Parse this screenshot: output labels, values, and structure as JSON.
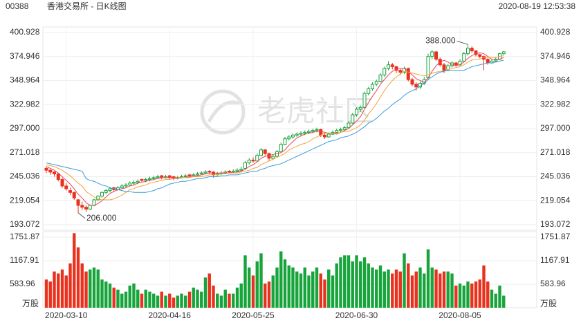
{
  "header": {
    "code": "00388",
    "title": "香港交易所 - 日K线图",
    "timestamp": "2020-08-19 12:53:38"
  },
  "watermark": "老虎社区",
  "chart_data": {
    "type": "candlestick",
    "categories": [
      null,
      null,
      null,
      null,
      null,
      "2020-03-10",
      null,
      null,
      null,
      null,
      null,
      null,
      null,
      null,
      null,
      null,
      null,
      null,
      null,
      null,
      null,
      null,
      null,
      null,
      null,
      null,
      null,
      null,
      null,
      null,
      null,
      "2020-04-16",
      null,
      null,
      null,
      null,
      null,
      null,
      null,
      null,
      null,
      null,
      null,
      null,
      null,
      null,
      null,
      null,
      null,
      null,
      null,
      null,
      "2020-05-25",
      null,
      null,
      null,
      null,
      null,
      null,
      null,
      null,
      null,
      null,
      null,
      null,
      null,
      null,
      null,
      null,
      null,
      null,
      null,
      null,
      null,
      null,
      null,
      null,
      null,
      "2020-06-30",
      null,
      null,
      null,
      null,
      null,
      null,
      null,
      null,
      null,
      null,
      null,
      null,
      null,
      null,
      null,
      null,
      null,
      null,
      null,
      null,
      null,
      null,
      null,
      null,
      null,
      "2020-08-05",
      null,
      null,
      null,
      null,
      null,
      null,
      null,
      null,
      null,
      null,
      null
    ],
    "candles": [
      [
        254,
        256,
        249,
        252
      ],
      [
        252,
        253,
        247,
        250
      ],
      [
        250,
        251,
        245,
        248
      ],
      [
        248,
        249,
        240,
        242
      ],
      [
        242,
        244,
        233,
        235
      ],
      [
        235,
        238,
        230,
        232
      ],
      [
        230,
        233,
        225,
        228
      ],
      [
        228,
        229,
        220,
        222
      ],
      [
        220,
        221,
        206,
        214
      ],
      [
        214,
        218,
        209,
        212
      ],
      [
        212,
        214,
        207,
        210
      ],
      [
        210,
        215,
        209,
        214
      ],
      [
        214,
        221,
        213,
        220
      ],
      [
        220,
        225,
        219,
        224
      ],
      [
        224,
        229,
        222,
        228
      ],
      [
        228,
        232,
        226,
        230
      ],
      [
        230,
        234,
        228,
        232
      ],
      [
        233,
        234,
        229,
        231
      ],
      [
        231,
        235,
        230,
        233
      ],
      [
        233,
        237,
        232,
        235
      ],
      [
        235,
        238,
        233,
        236
      ],
      [
        236,
        240,
        235,
        238
      ],
      [
        238,
        241,
        236,
        239
      ],
      [
        239,
        242,
        237,
        240
      ],
      [
        242,
        243,
        239,
        241
      ],
      [
        241,
        244,
        239,
        242
      ],
      [
        242,
        245,
        240,
        243
      ],
      [
        243,
        246,
        241,
        244
      ],
      [
        244,
        247,
        243,
        245
      ],
      [
        246,
        247,
        242,
        244
      ],
      [
        244,
        247,
        243,
        245
      ],
      [
        246,
        247,
        242,
        244
      ],
      [
        245,
        246,
        241,
        243
      ],
      [
        243,
        246,
        242,
        244
      ],
      [
        244,
        247,
        243,
        245
      ],
      [
        245,
        248,
        244,
        246
      ],
      [
        247,
        248,
        244,
        246
      ],
      [
        246,
        249,
        245,
        247
      ],
      [
        247,
        250,
        246,
        248
      ],
      [
        248,
        251,
        247,
        249
      ],
      [
        249,
        252,
        248,
        250
      ],
      [
        251,
        252,
        248,
        250
      ],
      [
        250,
        251,
        244,
        247
      ],
      [
        247,
        250,
        246,
        248
      ],
      [
        248,
        251,
        247,
        249
      ],
      [
        249,
        252,
        248,
        250
      ],
      [
        251,
        252,
        249,
        250
      ],
      [
        250,
        253,
        249,
        251
      ],
      [
        251,
        254,
        250,
        252
      ],
      [
        252,
        256,
        251,
        253
      ],
      [
        254,
        262,
        253,
        260
      ],
      [
        260,
        265,
        258,
        263
      ],
      [
        263,
        266,
        260,
        262
      ],
      [
        262,
        270,
        261,
        268
      ],
      [
        268,
        276,
        267,
        274
      ],
      [
        274,
        275,
        268,
        270
      ],
      [
        270,
        271,
        262,
        265
      ],
      [
        265,
        269,
        263,
        267
      ],
      [
        267,
        274,
        266,
        272
      ],
      [
        272,
        282,
        271,
        280
      ],
      [
        280,
        288,
        279,
        286
      ],
      [
        286,
        290,
        284,
        288
      ],
      [
        288,
        292,
        286,
        290
      ],
      [
        290,
        293,
        288,
        291
      ],
      [
        291,
        294,
        289,
        292
      ],
      [
        292,
        295,
        290,
        293
      ],
      [
        293,
        296,
        291,
        294
      ],
      [
        294,
        297,
        292,
        295
      ],
      [
        295,
        298,
        293,
        296
      ],
      [
        296,
        297,
        288,
        290
      ],
      [
        290,
        292,
        286,
        288
      ],
      [
        288,
        293,
        287,
        291
      ],
      [
        291,
        295,
        290,
        293
      ],
      [
        293,
        297,
        292,
        295
      ],
      [
        295,
        298,
        293,
        296
      ],
      [
        296,
        300,
        295,
        298
      ],
      [
        298,
        305,
        297,
        303
      ],
      [
        303,
        314,
        302,
        312
      ],
      [
        312,
        320,
        310,
        318
      ],
      [
        318,
        322,
        315,
        320
      ],
      [
        320,
        337,
        319,
        335
      ],
      [
        335,
        342,
        333,
        340
      ],
      [
        340,
        347,
        338,
        345
      ],
      [
        345,
        350,
        343,
        348
      ],
      [
        348,
        357,
        347,
        355
      ],
      [
        355,
        364,
        353,
        362
      ],
      [
        362,
        370,
        360,
        366
      ],
      [
        366,
        368,
        361,
        364
      ],
      [
        364,
        365,
        357,
        360
      ],
      [
        360,
        362,
        355,
        358
      ],
      [
        358,
        364,
        356,
        362
      ],
      [
        362,
        363,
        348,
        350
      ],
      [
        350,
        352,
        343,
        345
      ],
      [
        345,
        347,
        338,
        342
      ],
      [
        342,
        348,
        340,
        346
      ],
      [
        346,
        353,
        344,
        350
      ],
      [
        352,
        378,
        350,
        375
      ],
      [
        375,
        382,
        372,
        380
      ],
      [
        380,
        381,
        370,
        372
      ],
      [
        372,
        374,
        364,
        366
      ],
      [
        366,
        368,
        357,
        360
      ],
      [
        360,
        367,
        359,
        365
      ],
      [
        365,
        370,
        363,
        368
      ],
      [
        368,
        369,
        364,
        366
      ],
      [
        366,
        372,
        365,
        370
      ],
      [
        370,
        380,
        369,
        378
      ],
      [
        378,
        388,
        376,
        384
      ],
      [
        384,
        386,
        379,
        381
      ],
      [
        381,
        382,
        375,
        377
      ],
      [
        377,
        378,
        373,
        375
      ],
      [
        375,
        376,
        360,
        372
      ],
      [
        372,
        373,
        366,
        368
      ],
      [
        368,
        372,
        367,
        370
      ],
      [
        370,
        374,
        369,
        372
      ],
      [
        372,
        379,
        371,
        378
      ],
      [
        378,
        381,
        377,
        380
      ]
    ],
    "up_color": "#17a43b",
    "down_color": "#e8321e",
    "series": [
      {
        "color": "#e8455a",
        "values": [
          256,
          254,
          252,
          249,
          245,
          241,
          237,
          232,
          226,
          222,
          217,
          214,
          214,
          216,
          219,
          223,
          227,
          229,
          231,
          232,
          233,
          235,
          236,
          238,
          239,
          240,
          241,
          242,
          243,
          244,
          244,
          244,
          244,
          244,
          244,
          244,
          245,
          246,
          246,
          247,
          248,
          249,
          249,
          249,
          249,
          249,
          249,
          250,
          250,
          251,
          253,
          256,
          258,
          261,
          265,
          267,
          268,
          269,
          270,
          271,
          274,
          279,
          283,
          287,
          289,
          291,
          292,
          293,
          294,
          294,
          293,
          292,
          292,
          291,
          293,
          295,
          297,
          301,
          305,
          310,
          318,
          325,
          332,
          338,
          345,
          350,
          355,
          359,
          361,
          362,
          362,
          359,
          355,
          351,
          349,
          347,
          352,
          359,
          365,
          369,
          371,
          369,
          366,
          365,
          366,
          369,
          373,
          376,
          378,
          379,
          378,
          375,
          372,
          371,
          372,
          374
        ]
      },
      {
        "color": "#f5a23a",
        "values": [
          258,
          257,
          256,
          254,
          252,
          249,
          246,
          242,
          238,
          235,
          229,
          226,
          223,
          221,
          220,
          220,
          220,
          221,
          223,
          225,
          228,
          231,
          232,
          234,
          235,
          236,
          238,
          239,
          240,
          241,
          242,
          242,
          243,
          243,
          244,
          244,
          244,
          245,
          245,
          245,
          246,
          247,
          247,
          247,
          248,
          248,
          249,
          249,
          249,
          250,
          251,
          252,
          254,
          255,
          258,
          260,
          262,
          264,
          266,
          268,
          270,
          274,
          276,
          278,
          280,
          281,
          283,
          286,
          288,
          290,
          292,
          292,
          292,
          292,
          293,
          294,
          294,
          296,
          298,
          301,
          306,
          313,
          318,
          324,
          331,
          338,
          344,
          349,
          353,
          356,
          359,
          358,
          357,
          356,
          355,
          354,
          355,
          357,
          358,
          359,
          359,
          361,
          362,
          363,
          364,
          366,
          369,
          371,
          372,
          372,
          374,
          374,
          374,
          374,
          375,
          376
        ]
      },
      {
        "color": "#3a9ad9",
        "values": [
          260,
          259,
          258,
          257,
          256,
          255,
          254,
          253,
          252,
          251,
          243,
          241,
          240,
          238,
          236,
          235,
          233,
          232,
          231,
          230,
          229,
          229,
          228,
          228,
          228,
          228,
          229,
          230,
          232,
          233,
          235,
          237,
          238,
          239,
          240,
          240,
          241,
          242,
          243,
          243,
          244,
          245,
          245,
          245,
          246,
          246,
          247,
          247,
          247,
          248,
          249,
          250,
          251,
          251,
          253,
          254,
          256,
          257,
          258,
          259,
          261,
          263,
          265,
          267,
          269,
          271,
          273,
          275,
          277,
          279,
          281,
          283,
          284,
          285,
          287,
          288,
          289,
          291,
          293,
          296,
          299,
          303,
          305,
          308,
          312,
          316,
          319,
          323,
          326,
          329,
          333,
          336,
          338,
          340,
          343,
          346,
          350,
          353,
          356,
          358,
          359,
          360,
          360,
          360,
          360,
          360,
          362,
          364,
          365,
          366,
          367,
          368,
          368,
          369,
          370,
          371
        ]
      }
    ],
    "ylim": [
      193.072,
      400.928
    ],
    "yticks": [
      193.072,
      219.054,
      245.036,
      271.018,
      {
        "value": 297,
        "label": "297.000"
      },
      322.982,
      348.964,
      374.946,
      400.928
    ],
    "annotations": [
      "388.000",
      "206.000"
    ],
    "volume": {
      "unit": "万股",
      "ylim": [
        0,
        1751.87
      ],
      "yticks": [
        583.96,
        1167.91,
        1751.87
      ],
      "values": [
        700,
        650,
        900,
        850,
        950,
        800,
        1100,
        1850,
        1500,
        1100,
        900,
        950,
        1000,
        950,
        700,
        650,
        600,
        500,
        450,
        350,
        400,
        550,
        600,
        450,
        350,
        450,
        400,
        350,
        300,
        400,
        300,
        350,
        250,
        300,
        350,
        300,
        400,
        500,
        450,
        400,
        750,
        850,
        550,
        350,
        300,
        450,
        350,
        350,
        500,
        600,
        1300,
        1000,
        800,
        1150,
        1350,
        600,
        650,
        800,
        1000,
        1400,
        1200,
        1050,
        1000,
        900,
        850,
        1000,
        800,
        900,
        1000,
        850,
        700,
        950,
        800,
        1100,
        1250,
        1300,
        1300,
        1150,
        1300,
        1150,
        1250,
        1100,
        1000,
        950,
        1050,
        900,
        950,
        850,
        950,
        900,
        1350,
        1100,
        800,
        900,
        1000,
        850,
        1450,
        1000,
        950,
        850,
        900,
        900,
        850,
        550,
        600,
        550,
        650,
        600,
        650,
        700,
        1050,
        650,
        450,
        350,
        550,
        300
      ]
    }
  }
}
